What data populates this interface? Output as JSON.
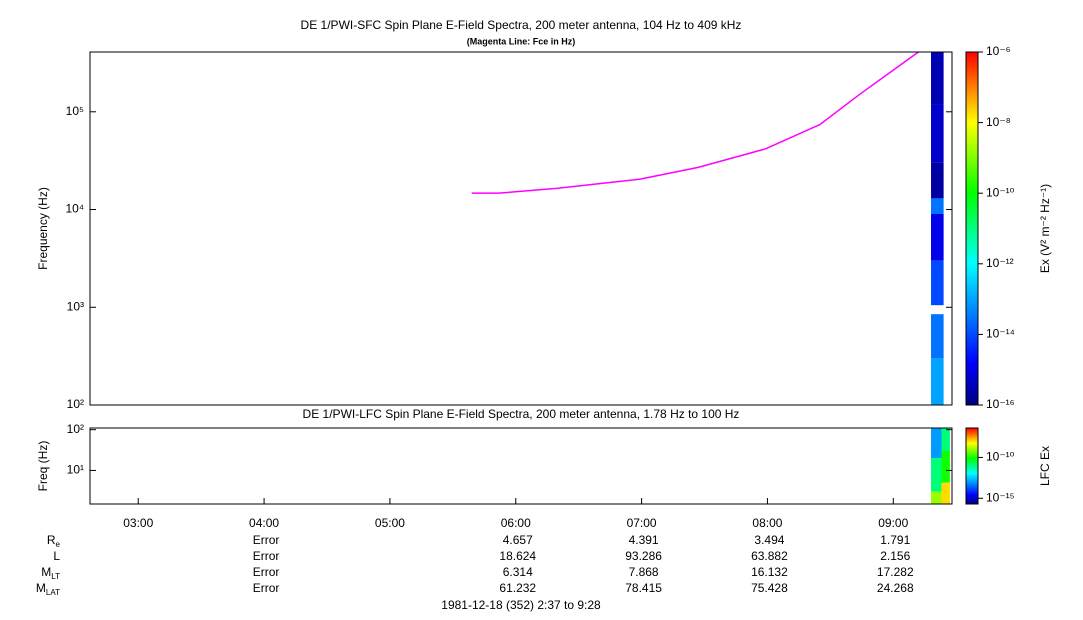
{
  "chart_data": [
    {
      "type": "spectrogram",
      "title": "DE 1/PWI-SFC  Spin Plane E-Field Spectra, 200 meter antenna, 104 Hz to 409 kHz",
      "subtitle": "(Magenta Line: Fce in Hz)",
      "ylabel": "Frequency (Hz)",
      "log_y": true,
      "xlim": [
        157,
        568
      ],
      "ylim": [
        100,
        409000
      ],
      "yticks": [
        {
          "value": 100,
          "label": "10²"
        },
        {
          "value": 1000,
          "label": "10³"
        },
        {
          "value": 10000,
          "label": "10⁴"
        },
        {
          "value": 100000,
          "label": "10⁵"
        }
      ],
      "colormap": "rainbow",
      "colorbar_label": "Ex (V² m⁻² Hz⁻¹)",
      "clim": [
        1e-16,
        1e-06
      ],
      "cticks": [
        {
          "value": 1e-06,
          "label": "10⁻⁶"
        },
        {
          "value": 1e-08,
          "label": "10⁻⁸"
        },
        {
          "value": 1e-10,
          "label": "10⁻¹⁰"
        },
        {
          "value": 1e-12,
          "label": "10⁻¹²"
        },
        {
          "value": 1e-14,
          "label": "10⁻¹⁴"
        },
        {
          "value": 1e-16,
          "label": "10⁻¹⁶"
        }
      ],
      "cells": [
        {
          "x": [
            558,
            564
          ],
          "y": [
            120000,
            409000
          ],
          "value": 3e-16
        },
        {
          "x": [
            558,
            564
          ],
          "y": [
            30000,
            120000
          ],
          "value": 5e-16
        },
        {
          "x": [
            558,
            564
          ],
          "y": [
            13000,
            30000
          ],
          "value": 2e-16
        },
        {
          "x": [
            558,
            564
          ],
          "y": [
            9000,
            13000
          ],
          "value": 3e-14
        },
        {
          "x": [
            558,
            564
          ],
          "y": [
            3000,
            9000
          ],
          "value": 1e-15
        },
        {
          "x": [
            558,
            564
          ],
          "y": [
            1050,
            3000
          ],
          "value": 1e-14
        },
        {
          "x": [
            558,
            564
          ],
          "y": [
            300,
            850
          ],
          "value": 3e-14
        },
        {
          "x": [
            558,
            564
          ],
          "y": [
            100,
            300
          ],
          "value": 1e-13
        }
      ],
      "line": {
        "color": "#ff00ff",
        "x": [
          339,
          352,
          380,
          419,
          447,
          479,
          505,
          524,
          552
        ],
        "values": [
          14700,
          14700,
          16500,
          20400,
          27000,
          41700,
          74000,
          151000,
          409000
        ]
      }
    },
    {
      "type": "spectrogram",
      "title": "DE 1/PWI-LFC  Spin Plane E-Field Spectra, 200 meter antenna, 1.78 Hz to 100 Hz",
      "ylabel": "Freq (Hz)",
      "log_y": true,
      "xlim": [
        157,
        568
      ],
      "ylim": [
        1.5,
        110
      ],
      "yticks": [
        {
          "value": 10,
          "label": "10¹"
        },
        {
          "value": 100,
          "label": "10²"
        }
      ],
      "xticks": [
        {
          "value": 180,
          "label": "03:00"
        },
        {
          "value": 240,
          "label": "04:00"
        },
        {
          "value": 300,
          "label": "05:00"
        },
        {
          "value": 360,
          "label": "06:00"
        },
        {
          "value": 420,
          "label": "07:00"
        },
        {
          "value": 480,
          "label": "08:00"
        },
        {
          "value": 540,
          "label": "09:00"
        }
      ],
      "colormap": "rainbow",
      "colorbar_label": "LFC Ex",
      "clim": [
        2e-16,
        4e-07
      ],
      "cticks": [
        {
          "value": 1e-10,
          "label": "10⁻¹⁰"
        },
        {
          "value": 1e-15,
          "label": "10⁻¹⁵"
        }
      ],
      "cells": [
        {
          "x": [
            558,
            563
          ],
          "y": [
            20,
            110
          ],
          "value": 1e-13
        },
        {
          "x": [
            558,
            563
          ],
          "y": [
            3,
            20
          ],
          "value": 1e-11
        },
        {
          "x": [
            558,
            563
          ],
          "y": [
            1.5,
            3
          ],
          "value": 1e-09
        },
        {
          "x": [
            563,
            567
          ],
          "y": [
            30,
            110
          ],
          "value": 1e-11
        },
        {
          "x": [
            563,
            567
          ],
          "y": [
            5,
            30
          ],
          "value": 1e-10
        },
        {
          "x": [
            563,
            567
          ],
          "y": [
            1.5,
            5
          ],
          "value": 1e-08
        }
      ]
    }
  ],
  "ephemeris": {
    "rows": [
      {
        "label": "R",
        "sub": "e",
        "values": [
          "Error",
          "4.657",
          "4.391",
          "3.494",
          "1.791"
        ]
      },
      {
        "label": "L",
        "sub": "",
        "values": [
          "Error",
          "18.624",
          "93.286",
          "63.882",
          "2.156"
        ]
      },
      {
        "label": "M",
        "sub": "LT",
        "values": [
          "Error",
          "6.314",
          "7.868",
          "16.132",
          "17.282"
        ]
      },
      {
        "label": "M",
        "sub": "LAT",
        "values": [
          "Error",
          "61.232",
          "78.415",
          "75.428",
          "24.268"
        ]
      }
    ],
    "footer": "1981-12-18 (352) 2:37 to 9:28"
  }
}
